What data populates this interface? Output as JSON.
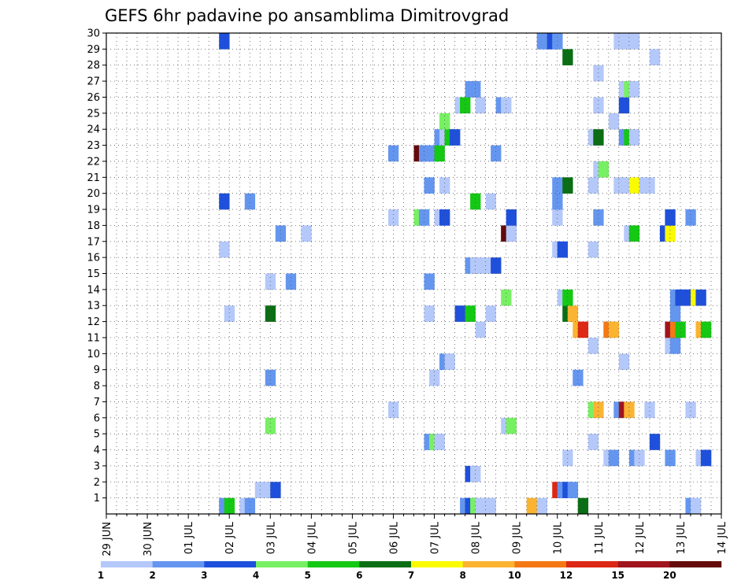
{
  "chart_data": {
    "type": "heatmap",
    "title": "GEFS 6hr padavine po ansamblima Dimitrovgrad",
    "x_tick_labels": [
      "29 JUN",
      "30 JUN",
      "01 JUL",
      "02 JUL",
      "03 JUL",
      "04 JUL",
      "05 JUL",
      "06 JUL",
      "07 JUL",
      "08 JUL",
      "09 JUL",
      "10 JUL",
      "11 JUL",
      "12 JUL",
      "13 JUL",
      "14 JUL"
    ],
    "y_tick_labels": [
      "1",
      "2",
      "3",
      "4",
      "5",
      "6",
      "7",
      "8",
      "9",
      "10",
      "11",
      "12",
      "13",
      "14",
      "15",
      "16",
      "17",
      "18",
      "19",
      "20",
      "21",
      "22",
      "23",
      "24",
      "25",
      "26",
      "27",
      "28",
      "29",
      "30"
    ],
    "xlim": [
      0,
      15
    ],
    "ylim": [
      0,
      30
    ],
    "time_step_hours": 6,
    "grid": true,
    "legend": {
      "placement": "bottom",
      "thresholds": [
        "1",
        "2",
        "3",
        "4",
        "5",
        "6",
        "7",
        "8",
        "10",
        "12",
        "15",
        "20"
      ],
      "colors": [
        "#b4c8fa",
        "#6496f0",
        "#1e50dc",
        "#78f064",
        "#14c814",
        "#0a6e14",
        "#fafa00",
        "#fab432",
        "#f57814",
        "#dc2814",
        "#a0141e",
        "#640a0a"
      ]
    },
    "cells": [
      [
        2.75,
        0,
        1
      ],
      [
        2.875,
        0,
        4
      ],
      [
        3.25,
        0,
        0
      ],
      [
        3.375,
        0,
        1
      ],
      [
        8.625,
        0,
        1
      ],
      [
        8.75,
        0,
        2
      ],
      [
        8.875,
        0,
        3
      ],
      [
        9,
        0,
        0
      ],
      [
        9.125,
        0,
        0
      ],
      [
        9.25,
        0,
        0
      ],
      [
        10.25,
        0,
        7
      ],
      [
        10.5,
        0,
        0
      ],
      [
        11.5,
        0,
        5
      ],
      [
        14.125,
        0,
        1
      ],
      [
        14.25,
        0,
        0
      ],
      [
        3.625,
        1,
        0
      ],
      [
        3.75,
        1,
        0
      ],
      [
        4,
        1,
        2
      ],
      [
        10.875,
        1,
        9
      ],
      [
        11,
        1,
        1
      ],
      [
        11.125,
        1,
        2
      ],
      [
        11.25,
        1,
        1
      ],
      [
        8.75,
        2,
        2
      ],
      [
        8.875,
        2,
        0
      ],
      [
        11.125,
        3,
        0
      ],
      [
        12.125,
        3,
        0
      ],
      [
        12.25,
        3,
        1
      ],
      [
        12.75,
        3,
        1
      ],
      [
        12.875,
        3,
        0
      ],
      [
        13.625,
        3,
        1
      ],
      [
        14.375,
        3,
        0
      ],
      [
        14.5,
        3,
        2
      ],
      [
        7.75,
        4,
        1
      ],
      [
        7.875,
        4,
        3
      ],
      [
        8,
        4,
        0
      ],
      [
        11.75,
        4,
        0
      ],
      [
        13.25,
        4,
        2
      ],
      [
        3.875,
        5,
        3
      ],
      [
        9.625,
        5,
        0
      ],
      [
        9.75,
        5,
        3
      ],
      [
        6.875,
        6,
        0
      ],
      [
        11.75,
        6,
        3
      ],
      [
        11.875,
        6,
        7
      ],
      [
        12.375,
        6,
        1
      ],
      [
        12.5,
        6,
        10
      ],
      [
        12.625,
        6,
        7
      ],
      [
        13.125,
        6,
        0
      ],
      [
        14.125,
        6,
        0
      ],
      [
        3.875,
        8,
        1
      ],
      [
        7.875,
        8,
        0
      ],
      [
        11.375,
        8,
        1
      ],
      [
        8.125,
        9,
        1
      ],
      [
        8.25,
        9,
        0
      ],
      [
        12.5,
        9,
        0
      ],
      [
        11.75,
        10,
        0
      ],
      [
        13.625,
        10,
        0
      ],
      [
        13.75,
        10,
        1
      ],
      [
        9,
        11,
        0
      ],
      [
        11.375,
        11,
        7
      ],
      [
        11.5,
        11,
        9
      ],
      [
        12.125,
        11,
        8
      ],
      [
        12.25,
        11,
        7
      ],
      [
        13.625,
        11,
        10
      ],
      [
        13.75,
        11,
        8
      ],
      [
        13.875,
        11,
        4
      ],
      [
        14.375,
        11,
        7
      ],
      [
        14.5,
        11,
        4
      ],
      [
        2.875,
        12,
        0
      ],
      [
        3.875,
        12,
        5
      ],
      [
        7.75,
        12,
        0
      ],
      [
        8.5,
        12,
        2
      ],
      [
        8.75,
        12,
        4
      ],
      [
        9.25,
        12,
        0
      ],
      [
        11.125,
        12,
        5
      ],
      [
        11.25,
        12,
        7
      ],
      [
        13.75,
        12,
        1
      ],
      [
        9.625,
        13,
        3
      ],
      [
        11,
        13,
        0
      ],
      [
        11.125,
        13,
        4
      ],
      [
        13.75,
        13,
        1
      ],
      [
        13.875,
        13,
        2
      ],
      [
        14,
        13,
        2
      ],
      [
        14.125,
        13,
        2
      ],
      [
        14.25,
        13,
        6
      ],
      [
        14.375,
        13,
        2
      ],
      [
        3.875,
        14,
        0
      ],
      [
        4.375,
        14,
        1
      ],
      [
        7.75,
        14,
        1
      ],
      [
        8.75,
        15,
        1
      ],
      [
        8.875,
        15,
        0
      ],
      [
        9,
        15,
        0
      ],
      [
        9.125,
        15,
        0
      ],
      [
        9.375,
        15,
        2
      ],
      [
        2.75,
        16,
        0
      ],
      [
        10.875,
        16,
        0
      ],
      [
        11,
        16,
        2
      ],
      [
        11.75,
        16,
        0
      ],
      [
        4.125,
        17,
        1
      ],
      [
        4.75,
        17,
        0
      ],
      [
        9.625,
        17,
        11
      ],
      [
        9.75,
        17,
        0
      ],
      [
        12.625,
        17,
        0
      ],
      [
        12.75,
        17,
        4
      ],
      [
        13.5,
        17,
        2
      ],
      [
        13.625,
        17,
        6
      ],
      [
        6.875,
        18,
        0
      ],
      [
        7.5,
        18,
        3
      ],
      [
        7.625,
        18,
        1
      ],
      [
        8,
        18,
        0
      ],
      [
        8.125,
        18,
        2
      ],
      [
        9.75,
        18,
        2
      ],
      [
        10.875,
        18,
        0
      ],
      [
        11.875,
        18,
        1
      ],
      [
        13.625,
        18,
        2
      ],
      [
        14.125,
        18,
        1
      ],
      [
        2.75,
        19,
        2
      ],
      [
        3.375,
        19,
        1
      ],
      [
        8.875,
        19,
        4
      ],
      [
        9.25,
        19,
        0
      ],
      [
        10.875,
        19,
        1
      ],
      [
        7.75,
        20,
        1
      ],
      [
        8.125,
        20,
        0
      ],
      [
        10.875,
        20,
        1
      ],
      [
        11.125,
        20,
        5
      ],
      [
        11.75,
        20,
        0
      ],
      [
        12.375,
        20,
        0
      ],
      [
        12.5,
        20,
        0
      ],
      [
        12.75,
        20,
        6
      ],
      [
        13,
        20,
        0
      ],
      [
        13.125,
        20,
        0
      ],
      [
        11.875,
        21,
        0
      ],
      [
        12,
        21,
        3
      ],
      [
        6.875,
        22,
        1
      ],
      [
        7.5,
        22,
        11
      ],
      [
        7.625,
        22,
        1
      ],
      [
        7.75,
        22,
        1
      ],
      [
        7.875,
        22,
        1
      ],
      [
        8,
        22,
        4
      ],
      [
        9.375,
        22,
        1
      ],
      [
        8,
        23,
        1
      ],
      [
        8.125,
        23,
        0
      ],
      [
        8.25,
        23,
        4
      ],
      [
        8.375,
        23,
        2
      ],
      [
        11.75,
        23,
        0
      ],
      [
        11.875,
        23,
        5
      ],
      [
        12.5,
        23,
        1
      ],
      [
        12.625,
        23,
        4
      ],
      [
        12.75,
        23,
        0
      ],
      [
        8.125,
        24,
        3
      ],
      [
        12.25,
        24,
        0
      ],
      [
        8.5,
        25,
        0
      ],
      [
        8.625,
        25,
        4
      ],
      [
        9,
        25,
        0
      ],
      [
        9.5,
        25,
        1
      ],
      [
        9.625,
        25,
        0
      ],
      [
        11.875,
        25,
        0
      ],
      [
        12.5,
        25,
        2
      ],
      [
        8.75,
        26,
        1
      ],
      [
        8.875,
        26,
        1
      ],
      [
        12.5,
        26,
        0
      ],
      [
        12.625,
        26,
        3
      ],
      [
        12.75,
        26,
        0
      ],
      [
        11.875,
        27,
        0
      ],
      [
        11.125,
        28,
        5
      ],
      [
        13.25,
        28,
        0
      ],
      [
        2.75,
        29,
        2
      ],
      [
        10.5,
        29,
        1
      ],
      [
        10.625,
        29,
        1
      ],
      [
        10.75,
        29,
        2
      ],
      [
        10.875,
        29,
        1
      ],
      [
        12.375,
        29,
        0
      ],
      [
        12.5,
        29,
        0
      ],
      [
        12.625,
        29,
        0
      ],
      [
        12.75,
        29,
        0
      ]
    ]
  }
}
